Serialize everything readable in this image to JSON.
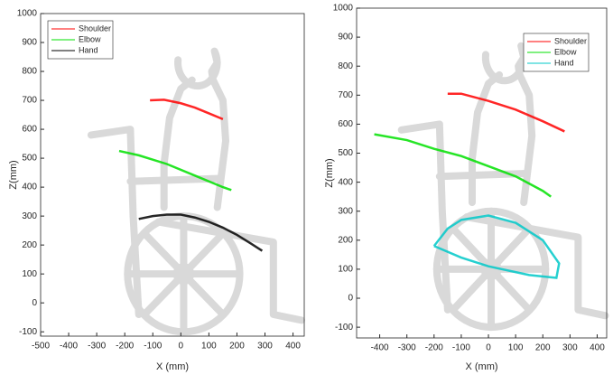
{
  "chart_data": [
    {
      "type": "line",
      "xlabel": "X (mm)",
      "ylabel": "Z(mm)",
      "legend": "upper left",
      "xlim": [
        -500,
        440
      ],
      "ylim": [
        -115,
        1000
      ],
      "xticks": [
        -500,
        -400,
        -300,
        -200,
        -100,
        0,
        100,
        200,
        300,
        400
      ],
      "yticks": [
        -100,
        0,
        100,
        200,
        300,
        400,
        500,
        600,
        700,
        800,
        900,
        1000
      ],
      "series": [
        {
          "name": "Shoulder",
          "color": "#ff0000",
          "x": [
            -110,
            -60,
            0,
            50,
            100,
            150
          ],
          "values": [
            700,
            702,
            690,
            675,
            655,
            635
          ]
        },
        {
          "name": "Elbow",
          "color": "#00e000",
          "x": [
            -220,
            -150,
            -50,
            50,
            150,
            180
          ],
          "values": [
            525,
            510,
            480,
            440,
            400,
            390
          ]
        },
        {
          "name": "Hand",
          "color": "#000000",
          "x": [
            -150,
            -100,
            -50,
            0,
            50,
            100,
            150,
            200,
            250,
            290
          ],
          "values": [
            290,
            300,
            305,
            305,
            295,
            280,
            260,
            235,
            205,
            180
          ]
        }
      ]
    },
    {
      "type": "line",
      "xlabel": "X (mm)",
      "ylabel": "Z(mm)",
      "legend": "upper right",
      "xlim": [
        -485,
        435
      ],
      "ylim": [
        -137,
        1000
      ],
      "xticks": [
        -400,
        -300,
        -200,
        -100,
        0,
        100,
        200,
        300,
        400
      ],
      "yticks": [
        -100,
        0,
        100,
        200,
        300,
        400,
        500,
        600,
        700,
        800,
        900,
        1000
      ],
      "series": [
        {
          "name": "Shoulder",
          "color": "#ff0000",
          "x": [
            -150,
            -100,
            0,
            100,
            200,
            280
          ],
          "values": [
            705,
            705,
            680,
            650,
            610,
            575
          ]
        },
        {
          "name": "Elbow",
          "color": "#00e000",
          "x": [
            -420,
            -300,
            -200,
            -100,
            0,
            100,
            200,
            230
          ],
          "values": [
            565,
            545,
            515,
            490,
            455,
            420,
            370,
            350
          ]
        },
        {
          "name": "Hand",
          "color": "#00c8c8",
          "x": [
            -200,
            -150,
            -100,
            0,
            100,
            200,
            260,
            250,
            150,
            0,
            -100,
            -200
          ],
          "values": [
            180,
            240,
            270,
            285,
            260,
            200,
            120,
            70,
            80,
            110,
            140,
            180
          ]
        }
      ]
    }
  ]
}
